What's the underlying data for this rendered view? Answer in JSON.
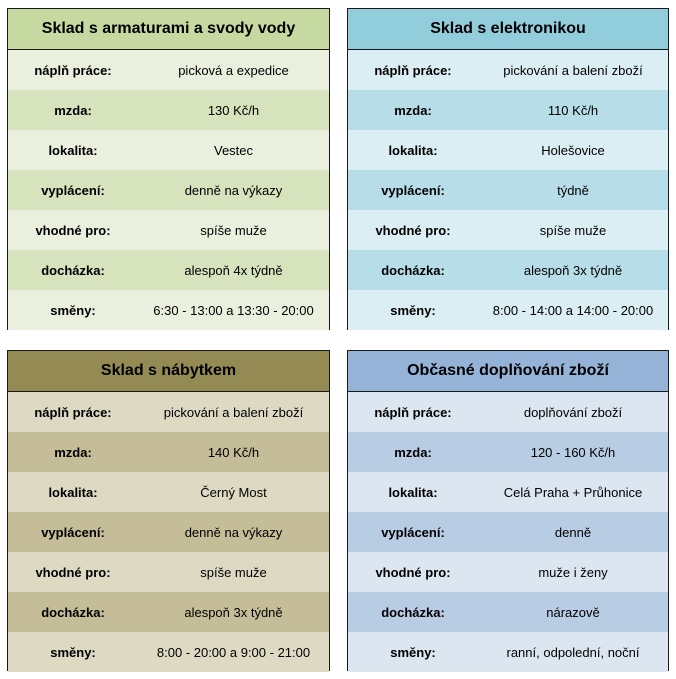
{
  "cards": [
    {
      "title": "Sklad s armaturami a svody vody",
      "rows": [
        {
          "label": "náplň práce:",
          "value": "picková a expedice"
        },
        {
          "label": "mzda:",
          "value": "130 Kč/h"
        },
        {
          "label": "lokalita:",
          "value": "Vestec"
        },
        {
          "label": "vyplácení:",
          "value": "denně na výkazy"
        },
        {
          "label": "vhodné pro:",
          "value": "spíše muže"
        },
        {
          "label": "docházka:",
          "value": "alespoň 4x týdně"
        },
        {
          "label": "směny:",
          "value": "6:30 - 13:00 a 13:30 - 20:00"
        }
      ]
    },
    {
      "title": "Sklad s elektronikou",
      "rows": [
        {
          "label": "náplň práce:",
          "value": "pickování a balení zboží"
        },
        {
          "label": "mzda:",
          "value": "110 Kč/h"
        },
        {
          "label": "lokalita:",
          "value": "Holešovice"
        },
        {
          "label": "vyplácení:",
          "value": "týdně"
        },
        {
          "label": "vhodné pro:",
          "value": "spíše muže"
        },
        {
          "label": "docházka:",
          "value": "alespoň 3x týdně"
        },
        {
          "label": "směny:",
          "value": "8:00 - 14:00 a 14:00 - 20:00"
        }
      ]
    },
    {
      "title": "Sklad s nábytkem",
      "rows": [
        {
          "label": "náplň práce:",
          "value": "pickování a balení zboží"
        },
        {
          "label": "mzda:",
          "value": "140 Kč/h"
        },
        {
          "label": "lokalita:",
          "value": "Černý Most"
        },
        {
          "label": "vyplácení:",
          "value": "denně na výkazy"
        },
        {
          "label": "vhodné pro:",
          "value": "spíše muže"
        },
        {
          "label": "docházka:",
          "value": "alespoň 3x týdně"
        },
        {
          "label": "směny:",
          "value": "8:00 - 20:00 a 9:00 - 21:00"
        }
      ]
    },
    {
      "title": "Občasné doplňování zboží",
      "rows": [
        {
          "label": "náplň práce:",
          "value": "doplňování zboží"
        },
        {
          "label": "mzda:",
          "value": "120 - 160 Kč/h"
        },
        {
          "label": "lokalita:",
          "value": "Celá Praha + Průhonice"
        },
        {
          "label": "vyplácení:",
          "value": "denně"
        },
        {
          "label": "vhodné pro:",
          "value": "muže i ženy"
        },
        {
          "label": "docházka:",
          "value": "nárazově"
        },
        {
          "label": "směny:",
          "value": "ranní, odpolední, noční"
        }
      ]
    }
  ],
  "colors": {
    "green_header": "#c6d9a0",
    "blue_header": "#92cddc",
    "olive_header": "#948a54",
    "steel_header": "#95b3d7"
  }
}
